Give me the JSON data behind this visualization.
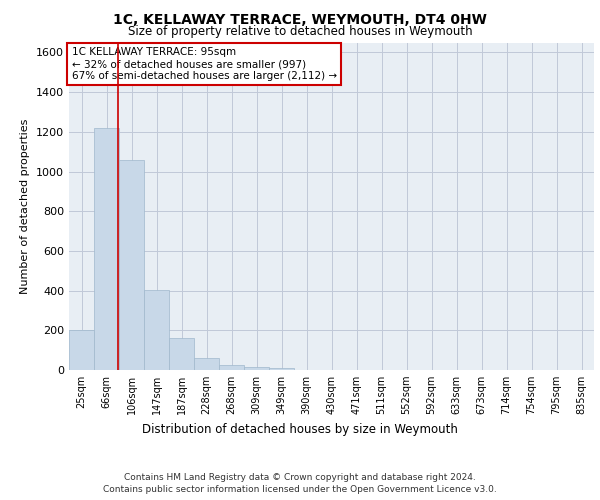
{
  "title": "1C, KELLAWAY TERRACE, WEYMOUTH, DT4 0HW",
  "subtitle": "Size of property relative to detached houses in Weymouth",
  "xlabel": "Distribution of detached houses by size in Weymouth",
  "ylabel": "Number of detached properties",
  "categories": [
    "25sqm",
    "66sqm",
    "106sqm",
    "147sqm",
    "187sqm",
    "228sqm",
    "268sqm",
    "309sqm",
    "349sqm",
    "390sqm",
    "430sqm",
    "471sqm",
    "511sqm",
    "552sqm",
    "592sqm",
    "633sqm",
    "673sqm",
    "714sqm",
    "754sqm",
    "795sqm",
    "835sqm"
  ],
  "values": [
    200,
    1220,
    1060,
    405,
    160,
    60,
    25,
    15,
    12,
    0,
    0,
    0,
    0,
    0,
    0,
    0,
    0,
    0,
    0,
    0,
    0
  ],
  "bar_color": "#c8d8e8",
  "bar_edge_color": "#a0b8cc",
  "grid_color": "#c0c8d8",
  "background_color": "#e8eef4",
  "property_line_bin_index": 1.45,
  "annotation_text": "1C KELLAWAY TERRACE: 95sqm\n← 32% of detached houses are smaller (997)\n67% of semi-detached houses are larger (2,112) →",
  "annotation_box_color": "#ffffff",
  "annotation_box_edge_color": "#cc0000",
  "vline_color": "#cc0000",
  "footer_line1": "Contains HM Land Registry data © Crown copyright and database right 2024.",
  "footer_line2": "Contains public sector information licensed under the Open Government Licence v3.0.",
  "ylim": [
    0,
    1650
  ],
  "yticks": [
    0,
    200,
    400,
    600,
    800,
    1000,
    1200,
    1400,
    1600
  ]
}
